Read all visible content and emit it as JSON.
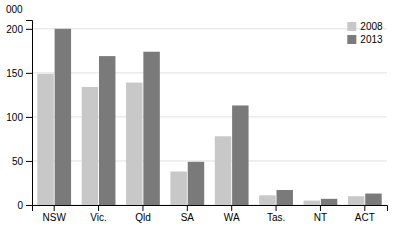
{
  "chart_data": {
    "type": "bar",
    "categories": [
      "NSW",
      "Vic.",
      "Qld",
      "SA",
      "WA",
      "Tas.",
      "NT",
      "ACT"
    ],
    "series": [
      {
        "name": "2008",
        "color": "#c8c8c8",
        "values": [
          149,
          134,
          139,
          38,
          78,
          11,
          5,
          10
        ]
      },
      {
        "name": "2013",
        "color": "#7a7a7a",
        "values": [
          200,
          169,
          174,
          49,
          113,
          17,
          7,
          13
        ]
      }
    ],
    "ylabel": "000",
    "ylim": [
      0,
      210
    ],
    "yticks": [
      0,
      50,
      100,
      150,
      200
    ],
    "grid": true,
    "legend": "upper right"
  }
}
